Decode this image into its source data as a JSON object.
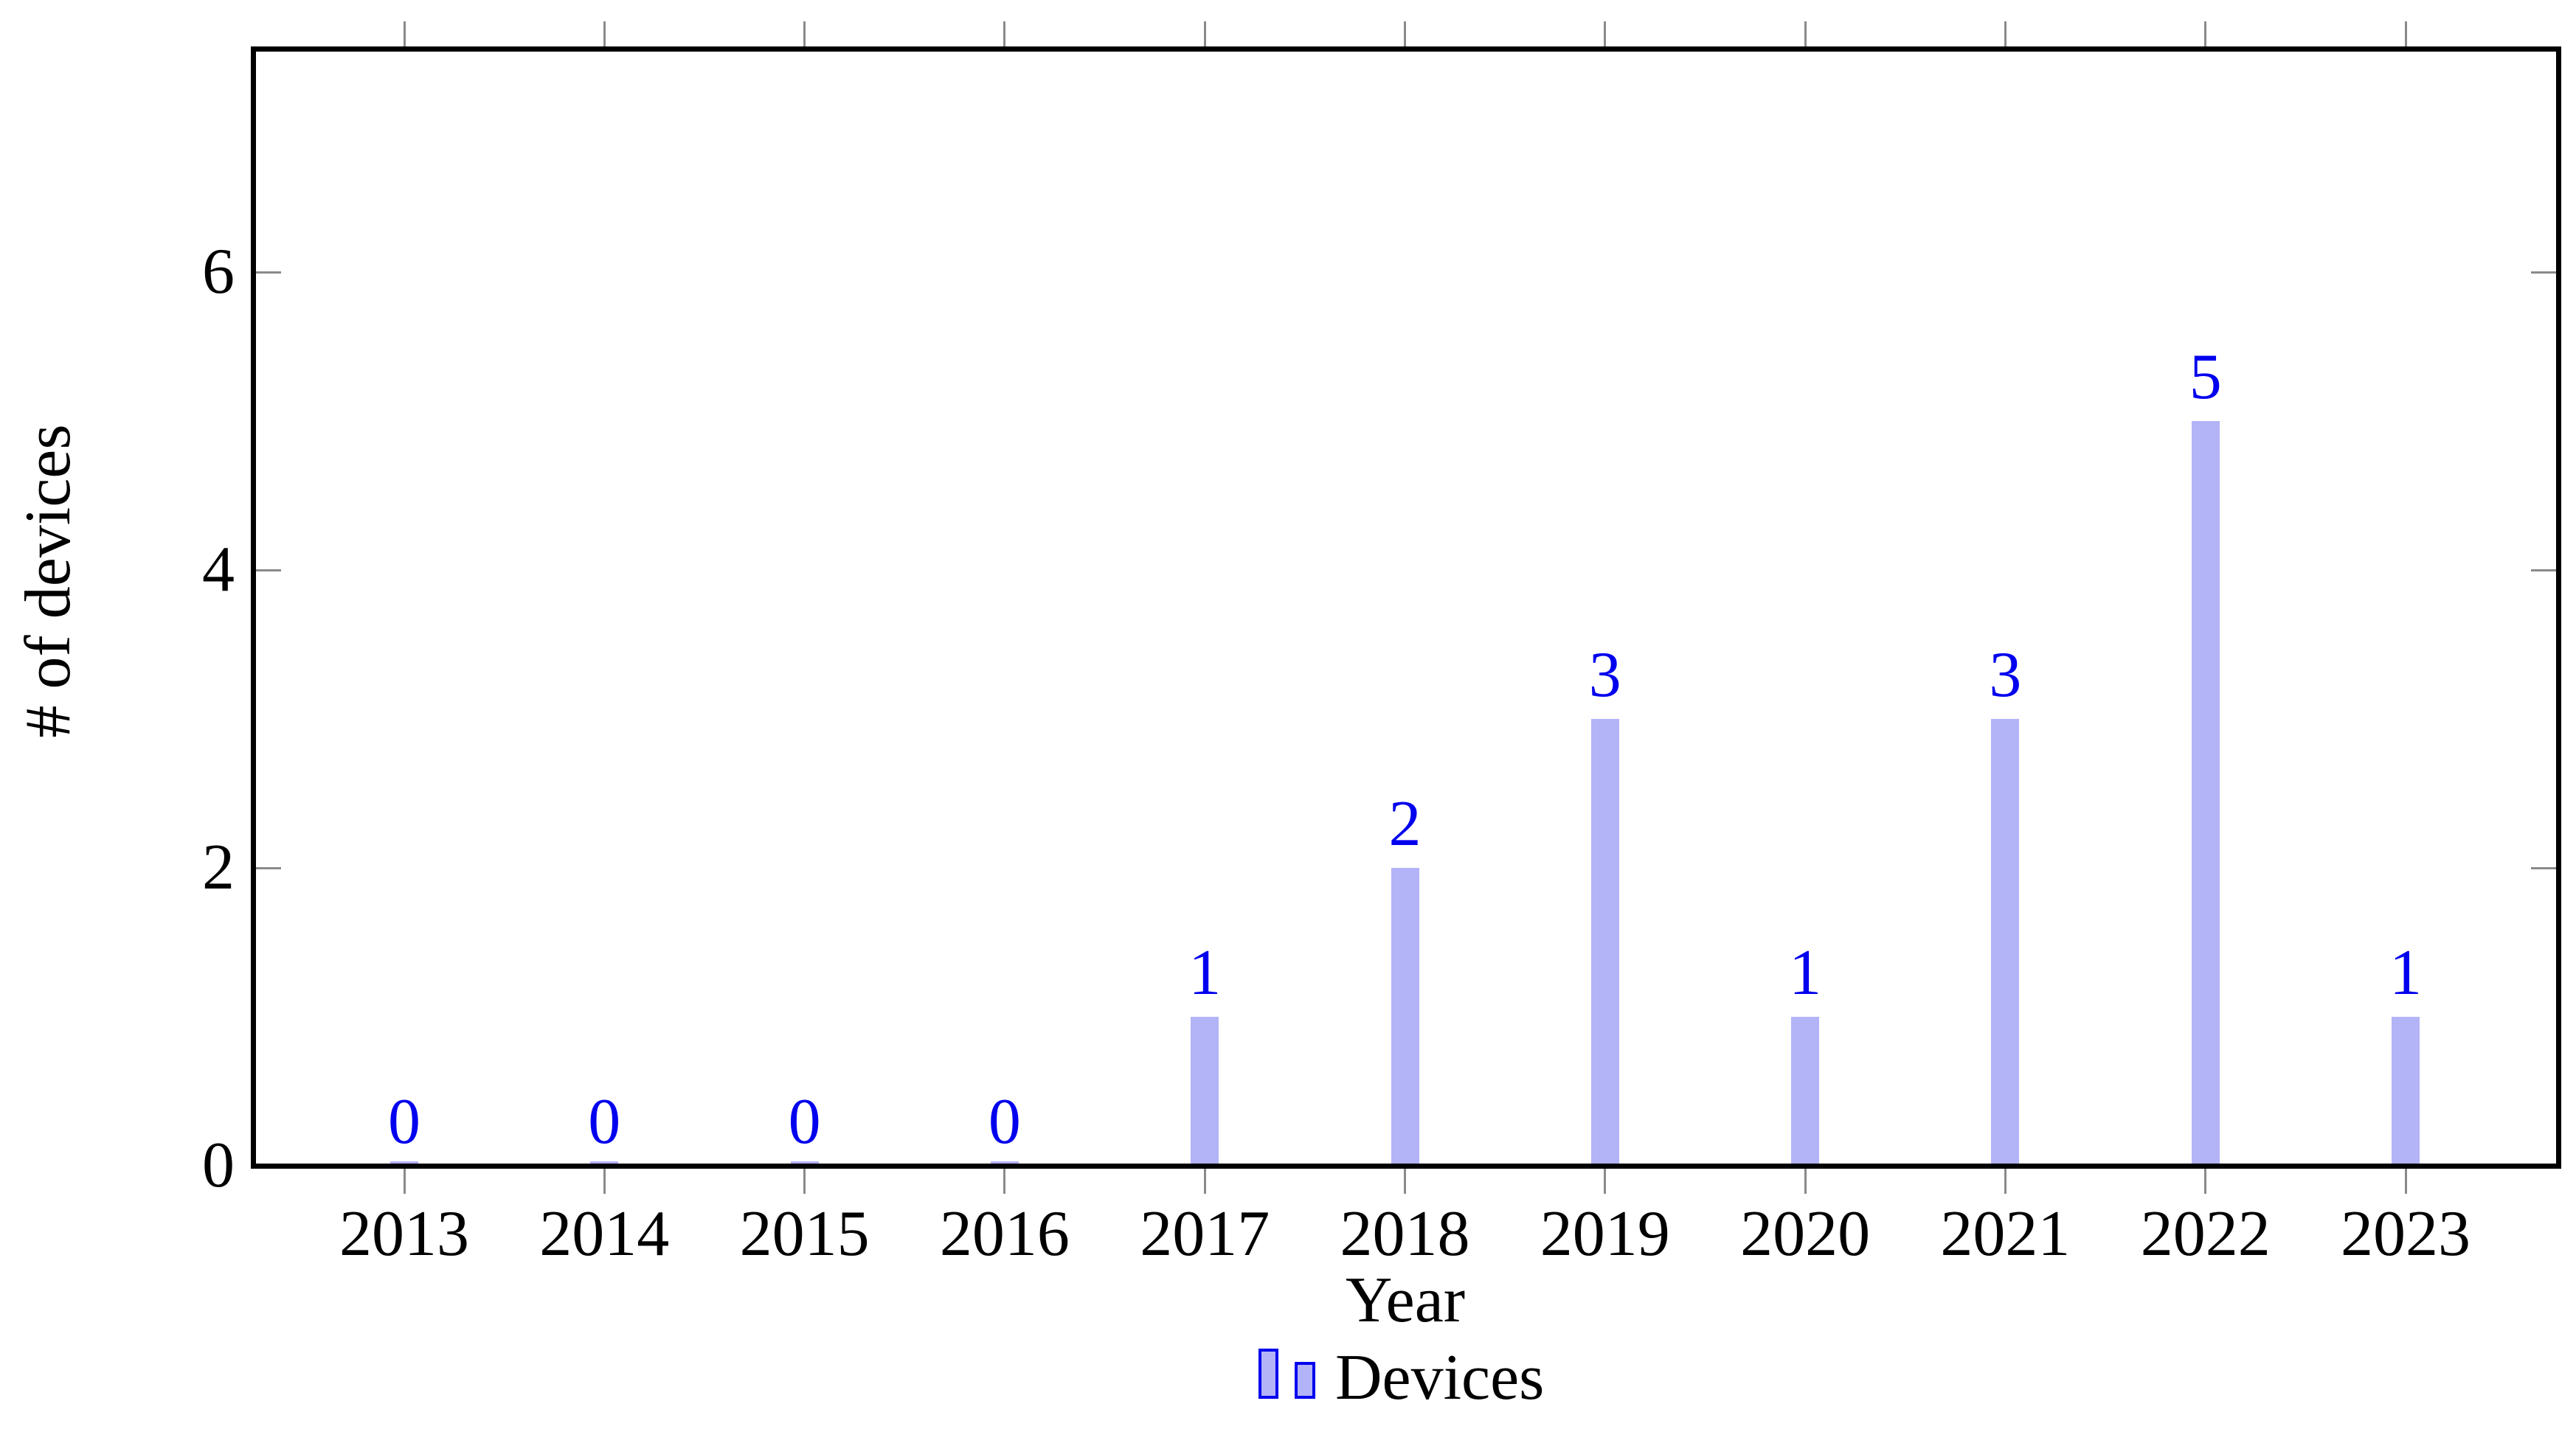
{
  "chart_data": {
    "type": "bar",
    "title": "",
    "xlabel": "Year",
    "ylabel": "# of devices",
    "categories": [
      "2013",
      "2014",
      "2015",
      "2016",
      "2017",
      "2018",
      "2019",
      "2020",
      "2021",
      "2022",
      "2023"
    ],
    "series": [
      {
        "name": "Devices",
        "values": [
          0,
          0,
          0,
          0,
          1,
          2,
          3,
          1,
          3,
          5,
          1
        ]
      }
    ],
    "data_labels": [
      0,
      0,
      0,
      0,
      1,
      2,
      3,
      1,
      3,
      5,
      1
    ],
    "yticks": [
      0,
      2,
      4,
      6
    ],
    "ylim": [
      0,
      7.5
    ],
    "grid": "off",
    "legend_position": "below-chart",
    "frame": "boxed"
  },
  "legend": {
    "label": "Devices"
  },
  "colors": {
    "background": "#ffffff",
    "bar_fill": "#b3b3f7",
    "accent_blue": "#0000ee",
    "tick_gray": "#8a8a8a",
    "axis_black": "#000000",
    "text_black": "#000000"
  }
}
